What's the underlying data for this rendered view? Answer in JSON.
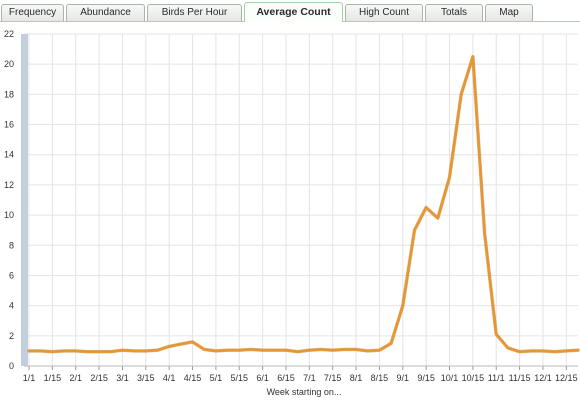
{
  "tabs": [
    {
      "label": "Frequency",
      "active": false
    },
    {
      "label": "Abundance",
      "active": false
    },
    {
      "label": "Birds Per Hour",
      "active": false
    },
    {
      "label": "Average Count",
      "active": true
    },
    {
      "label": "High Count",
      "active": false
    },
    {
      "label": "Totals",
      "active": false
    },
    {
      "label": "Map",
      "active": false
    }
  ],
  "colors": {
    "line": "#e8962e",
    "line_shadow": "#b96e1e",
    "grid": "#e4e4e4",
    "axis_bar": "#c4cfde"
  },
  "chart_data": {
    "type": "line",
    "title": "",
    "xlabel": "Week starting on...",
    "ylabel": "",
    "ylim": [
      0,
      22
    ],
    "yticks": [
      0,
      2,
      4,
      6,
      8,
      10,
      12,
      14,
      16,
      18,
      20,
      22
    ],
    "grid": true,
    "x": [
      "1/1",
      "1/8",
      "1/15",
      "1/22",
      "2/1",
      "2/8",
      "2/15",
      "2/22",
      "3/1",
      "3/8",
      "3/15",
      "3/22",
      "4/1",
      "4/8",
      "4/15",
      "4/22",
      "5/1",
      "5/8",
      "5/15",
      "5/22",
      "6/1",
      "6/8",
      "6/15",
      "6/22",
      "7/1",
      "7/8",
      "7/15",
      "7/22",
      "8/1",
      "8/8",
      "8/15",
      "8/22",
      "9/1",
      "9/8",
      "9/15",
      "9/22",
      "10/1",
      "10/8",
      "10/15",
      "10/22",
      "11/1",
      "11/8",
      "11/15",
      "11/22",
      "12/1",
      "12/8",
      "12/15",
      "12/22"
    ],
    "xtick_labels": [
      "1/1",
      "1/15",
      "2/1",
      "2/15",
      "3/1",
      "3/15",
      "4/1",
      "4/15",
      "5/1",
      "5/15",
      "6/1",
      "6/15",
      "7/1",
      "7/15",
      "8/1",
      "8/15",
      "9/1",
      "9/15",
      "10/1",
      "10/15",
      "11/1",
      "11/15",
      "12/1",
      "12/15"
    ],
    "series": [
      {
        "values": [
          1.0,
          1.0,
          0.95,
          1.0,
          1.0,
          0.95,
          0.95,
          0.95,
          1.05,
          1.0,
          1.0,
          1.05,
          1.3,
          1.45,
          1.6,
          1.1,
          1.0,
          1.05,
          1.05,
          1.1,
          1.05,
          1.05,
          1.05,
          0.95,
          1.05,
          1.1,
          1.05,
          1.1,
          1.1,
          1.0,
          1.05,
          1.5,
          4.0,
          9.0,
          10.5,
          9.8,
          12.5,
          18.0,
          20.5,
          8.8,
          2.1,
          1.2,
          0.95,
          1.0,
          1.0,
          0.95,
          1.0,
          1.05
        ]
      }
    ]
  }
}
